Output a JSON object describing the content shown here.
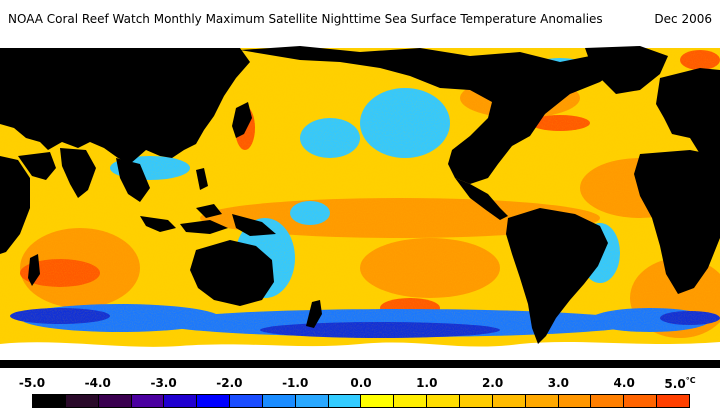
{
  "header": {
    "title": "NOAA Coral Reef Watch Monthly Maximum Satellite Nighttime Sea Surface Temperature Anomalies",
    "date": "Dec 2006"
  },
  "legend": {
    "unit": "°C",
    "tick_labels": [
      "-5.0",
      "-4.0",
      "-3.0",
      "-2.0",
      "-1.0",
      "0.0",
      "1.0",
      "2.0",
      "3.0",
      "4.0",
      "5.0"
    ],
    "colors": [
      "#000000",
      "#2a0a2a",
      "#3a0050",
      "#4b00a0",
      "#2000d0",
      "#0000ff",
      "#1a4dff",
      "#1a8cff",
      "#29a8ff",
      "#33ccff",
      "#ffff00",
      "#ffee00",
      "#ffdd00",
      "#ffcc00",
      "#ffbb00",
      "#ffa800",
      "#ff9600",
      "#ff7f00",
      "#ff6400",
      "#ff4000"
    ]
  },
  "map_colors": {
    "land": "#000000",
    "ice": "#ffffff",
    "ocean_base": "#ffd000",
    "warm": "#ff9a00",
    "hot": "#ff5a00",
    "pale": "#ffee40",
    "cool": "#33c8ff",
    "cold": "#1a78ff",
    "deep_cold": "#1030d8"
  }
}
